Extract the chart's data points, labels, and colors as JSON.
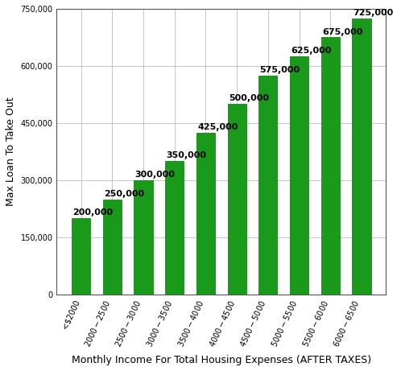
{
  "categories": [
    "<$2000",
    "$2000-$2500",
    "$2500-$3000",
    "$3000-$3500",
    "$3500-$4000",
    "$4000-$4500",
    "$4500-$5000",
    "$5000-$5500",
    "$5500-$6000",
    "$6000-$6500"
  ],
  "values": [
    200000,
    250000,
    300000,
    350000,
    425000,
    500000,
    575000,
    625000,
    675000,
    725000
  ],
  "bar_color": "#1a9a1a",
  "bar_edge_color": "#007700",
  "ylabel": "Max Loan To Take Out",
  "xlabel": "Monthly Income For Total Housing Expenses (AFTER TAXES)",
  "ylim": [
    0,
    750000
  ],
  "yticks": [
    0,
    150000,
    300000,
    450000,
    600000,
    750000
  ],
  "background_color": "#ffffff",
  "grid_color": "#bbbbbb",
  "axis_label_fontsize": 9,
  "value_label_fontsize": 8,
  "tick_label_fontsize": 7,
  "bar_width": 0.6
}
